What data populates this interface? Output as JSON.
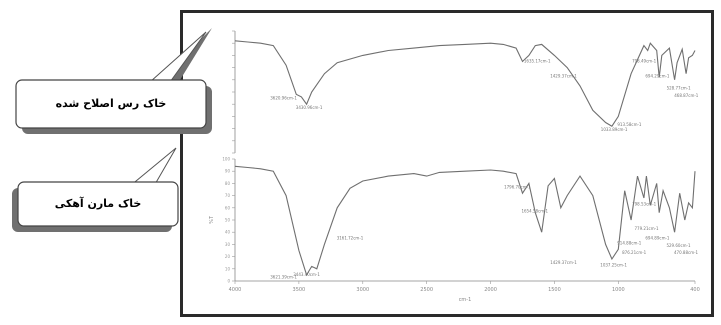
{
  "callouts": {
    "top_label": "خاک رس اصلاح شده",
    "bottom_label": "خاک مارن آهکی"
  },
  "colors": {
    "line": "#6f6f6f",
    "frame": "#2a2a2a",
    "callout_shadow": "#707070"
  },
  "chart_data": [
    {
      "type": "line",
      "title": "",
      "xlabel": "",
      "ylabel": "",
      "xlim": [
        4000,
        400
      ],
      "ylim": [
        0,
        100
      ],
      "series": [
        {
          "name": "",
          "points": [
            [
              4000,
              92
            ],
            [
              3900,
              91
            ],
            [
              3800,
              90
            ],
            [
              3700,
              88
            ],
            [
              3600,
              72
            ],
            [
              3560,
              60
            ],
            [
              3520,
              48
            ],
            [
              3480,
              46
            ],
            [
              3440,
              40
            ],
            [
              3400,
              50
            ],
            [
              3300,
              65
            ],
            [
              3200,
              74
            ],
            [
              3000,
              80
            ],
            [
              2800,
              84
            ],
            [
              2600,
              86
            ],
            [
              2400,
              88
            ],
            [
              2200,
              89
            ],
            [
              2000,
              90
            ],
            [
              1900,
              89
            ],
            [
              1800,
              86
            ],
            [
              1750,
              75
            ],
            [
              1700,
              80
            ],
            [
              1650,
              88
            ],
            [
              1600,
              89
            ],
            [
              1500,
              80
            ],
            [
              1400,
              70
            ],
            [
              1300,
              55
            ],
            [
              1200,
              35
            ],
            [
              1100,
              25
            ],
            [
              1050,
              22
            ],
            [
              1000,
              30
            ],
            [
              900,
              65
            ],
            [
              800,
              88
            ],
            [
              770,
              84
            ],
            [
              750,
              90
            ],
            [
              700,
              84
            ],
            [
              680,
              62
            ],
            [
              660,
              80
            ],
            [
              620,
              84
            ],
            [
              600,
              86
            ],
            [
              560,
              60
            ],
            [
              540,
              74
            ],
            [
              500,
              85
            ],
            [
              470,
              65
            ],
            [
              450,
              78
            ],
            [
              420,
              80
            ],
            [
              400,
              84
            ]
          ]
        }
      ],
      "annotations": [
        {
          "x": 3420,
          "y": 36,
          "text": "3430.96cm-1"
        },
        {
          "x": 3620,
          "y": 44,
          "text": "3620.96cm-1"
        },
        {
          "x": 1635,
          "y": 74,
          "text": "1635.17cm-1"
        },
        {
          "x": 1429,
          "y": 62,
          "text": "1429.37cm-1"
        },
        {
          "x": 1033,
          "y": 18,
          "text": "1033.89cm-1"
        },
        {
          "x": 913,
          "y": 22,
          "text": "913.58cm-1"
        },
        {
          "x": 798,
          "y": 74,
          "text": "798.49cm-1"
        },
        {
          "x": 694,
          "y": 62,
          "text": "694.29cm-1"
        },
        {
          "x": 528,
          "y": 52,
          "text": "528.77cm-1"
        },
        {
          "x": 468,
          "y": 46,
          "text": "468.87cm-1"
        }
      ]
    },
    {
      "type": "line",
      "title": "",
      "xlabel": "cm-1",
      "ylabel": "%T",
      "xlim": [
        4000,
        400
      ],
      "ylim": [
        0,
        100
      ],
      "x_ticks": [
        4000,
        3500,
        3000,
        2500,
        2000,
        1500,
        1000,
        400
      ],
      "y_ticks": [
        0,
        10,
        20,
        30,
        40,
        50,
        60,
        70,
        80,
        90,
        100
      ],
      "series": [
        {
          "name": "",
          "points": [
            [
              4000,
              94
            ],
            [
              3900,
              93
            ],
            [
              3800,
              92
            ],
            [
              3700,
              90
            ],
            [
              3600,
              70
            ],
            [
              3500,
              25
            ],
            [
              3440,
              5
            ],
            [
              3400,
              12
            ],
            [
              3360,
              10
            ],
            [
              3300,
              30
            ],
            [
              3200,
              60
            ],
            [
              3100,
              76
            ],
            [
              3000,
              82
            ],
            [
              2800,
              86
            ],
            [
              2600,
              88
            ],
            [
              2500,
              86
            ],
            [
              2400,
              89
            ],
            [
              2200,
              90
            ],
            [
              2000,
              91
            ],
            [
              1900,
              90
            ],
            [
              1800,
              88
            ],
            [
              1750,
              72
            ],
            [
              1700,
              80
            ],
            [
              1650,
              56
            ],
            [
              1600,
              40
            ],
            [
              1550,
              78
            ],
            [
              1500,
              84
            ],
            [
              1450,
              60
            ],
            [
              1400,
              70
            ],
            [
              1300,
              86
            ],
            [
              1200,
              70
            ],
            [
              1100,
              30
            ],
            [
              1050,
              18
            ],
            [
              1000,
              26
            ],
            [
              950,
              74
            ],
            [
              900,
              50
            ],
            [
              850,
              86
            ],
            [
              800,
              68
            ],
            [
              780,
              86
            ],
            [
              750,
              62
            ],
            [
              700,
              80
            ],
            [
              680,
              56
            ],
            [
              650,
              74
            ],
            [
              600,
              60
            ],
            [
              560,
              40
            ],
            [
              520,
              72
            ],
            [
              480,
              50
            ],
            [
              450,
              64
            ],
            [
              420,
              60
            ],
            [
              400,
              90
            ]
          ]
        }
      ],
      "annotations": [
        {
          "x": 3440,
          "y": 4,
          "text": "3443.40cm-1"
        },
        {
          "x": 3620,
          "y": 2,
          "text": "3621.39cm-1"
        },
        {
          "x": 3100,
          "y": 34,
          "text": "3161.72cm-1"
        },
        {
          "x": 1790,
          "y": 76,
          "text": "1796.70cm-1"
        },
        {
          "x": 1654,
          "y": 56,
          "text": "1654.58cm-1"
        },
        {
          "x": 1429,
          "y": 14,
          "text": "1429.37cm-1"
        },
        {
          "x": 1037,
          "y": 12,
          "text": "1037.25cm-1"
        },
        {
          "x": 914,
          "y": 30,
          "text": "914.88cm-1"
        },
        {
          "x": 876,
          "y": 22,
          "text": "876.21cm-1"
        },
        {
          "x": 798,
          "y": 62,
          "text": "798.53cm-1"
        },
        {
          "x": 779,
          "y": 42,
          "text": "779.21cm-1"
        },
        {
          "x": 694,
          "y": 34,
          "text": "694.89cm-1"
        },
        {
          "x": 529,
          "y": 28,
          "text": "529.60cm-1"
        },
        {
          "x": 470,
          "y": 22,
          "text": "470.88cm-1"
        }
      ]
    }
  ]
}
